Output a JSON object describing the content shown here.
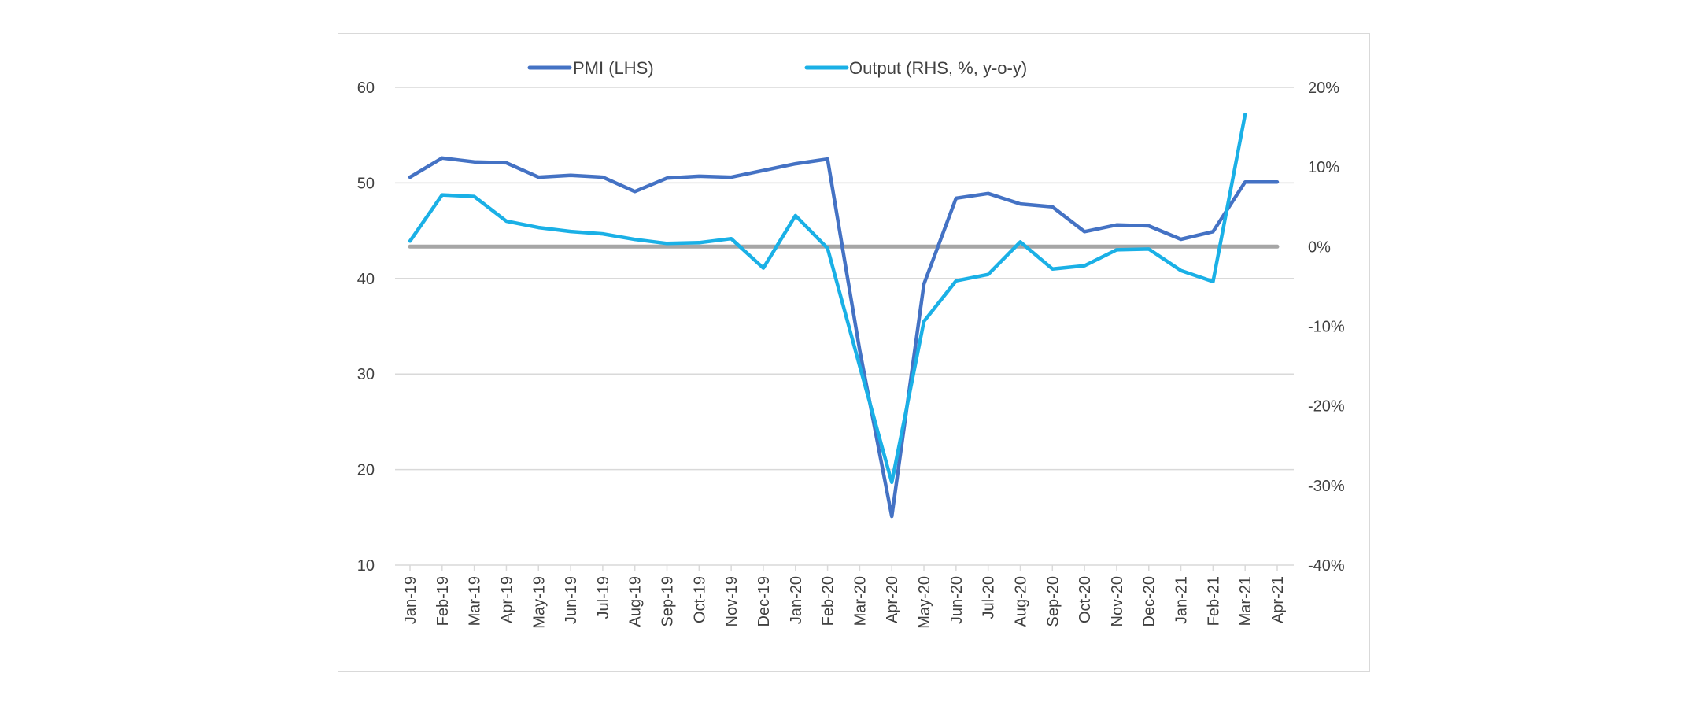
{
  "chart_data": {
    "type": "line",
    "title": "",
    "categories": [
      "Jan-19",
      "Feb-19",
      "Mar-19",
      "Apr-19",
      "May-19",
      "Jun-19",
      "Jul-19",
      "Aug-19",
      "Sep-19",
      "Oct-19",
      "Nov-19",
      "Dec-19",
      "Jan-20",
      "Feb-20",
      "Mar-20",
      "Apr-20",
      "May-20",
      "Jun-20",
      "Jul-20",
      "Aug-20",
      "Sep-20",
      "Oct-20",
      "Nov-20",
      "Dec-20",
      "Jan-21",
      "Feb-21",
      "Mar-21",
      "Apr-21"
    ],
    "y_left": {
      "min": 10,
      "max": 60,
      "ticks": [
        10,
        20,
        30,
        40,
        50,
        60
      ],
      "tick_labels": [
        "10",
        "20",
        "30",
        "40",
        "50",
        "60"
      ]
    },
    "y_right": {
      "min": -40,
      "max": 20,
      "ticks": [
        -40,
        -30,
        -20,
        -10,
        0,
        10,
        20
      ],
      "tick_labels": [
        "-40%",
        "-30%",
        "-20%",
        "-10%",
        "0%",
        "10%",
        "20%"
      ]
    },
    "grid": true,
    "legend_position": "top",
    "series": [
      {
        "name": "PMI (LHS)",
        "axis": "left",
        "color": "#4472c4",
        "values": [
          50.6,
          52.6,
          52.2,
          52.1,
          50.6,
          50.8,
          50.6,
          49.1,
          50.5,
          50.7,
          50.6,
          51.3,
          52.0,
          52.5,
          32.5,
          15.1,
          39.4,
          48.4,
          48.9,
          47.8,
          47.5,
          44.9,
          45.6,
          45.5,
          44.1,
          44.9,
          50.1,
          50.1
        ]
      },
      {
        "name": "Output (RHS, %, y-o-y)",
        "axis": "right",
        "color": "#1ab0e6",
        "values": [
          0.7,
          6.5,
          6.3,
          3.2,
          2.4,
          1.9,
          1.6,
          0.9,
          0.4,
          0.5,
          1.0,
          -2.7,
          3.9,
          -0.2,
          -15.0,
          -29.6,
          -9.4,
          -4.3,
          -3.5,
          0.6,
          -2.8,
          -2.4,
          -0.4,
          -0.3,
          -3.0,
          -4.4,
          16.6,
          null
        ]
      },
      {
        "name": "",
        "axis": "right",
        "color": "#a6a6a6",
        "values": [
          0,
          0,
          0,
          0,
          0,
          0,
          0,
          0,
          0,
          0,
          0,
          0,
          0,
          0,
          0,
          0,
          0,
          0,
          0,
          0,
          0,
          0,
          0,
          0,
          0,
          0,
          0,
          0
        ]
      }
    ]
  }
}
